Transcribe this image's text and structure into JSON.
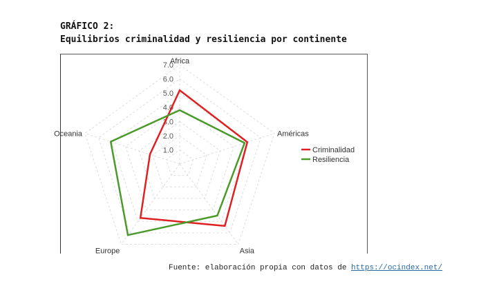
{
  "heading": {
    "label": "GRÁFICO 2:",
    "title": "Equilibrios criminalidad y resiliencia por continente"
  },
  "chart_data": {
    "type": "radar",
    "categories": [
      "Africa",
      "Américas",
      "Asia",
      "Europe",
      "Oceania"
    ],
    "ticks": [
      "1.0",
      "2.0",
      "3.0",
      "4.0",
      "5.0",
      "6.0",
      "7.0"
    ],
    "rlim": [
      0,
      7
    ],
    "grid": true,
    "legend_position": "right",
    "series": [
      {
        "name": "Criminalidad",
        "color": "#e02020",
        "values": [
          5.2,
          5.0,
          5.4,
          4.7,
          2.2
        ]
      },
      {
        "name": "Resiliencia",
        "color": "#4a9a2a",
        "values": [
          3.8,
          4.8,
          4.5,
          6.2,
          5.1
        ]
      }
    ]
  },
  "source": {
    "prefix": "Fuente: elaboración propia con datos de ",
    "link": "https://ocindex.net/"
  }
}
